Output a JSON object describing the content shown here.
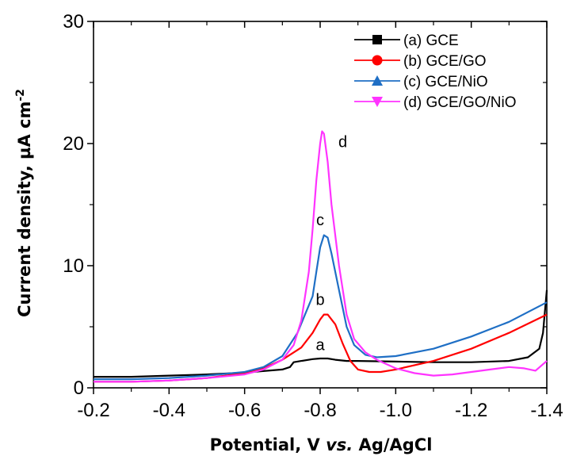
{
  "chart_data": {
    "type": "line",
    "xlabel_main": "Potential, V ",
    "xlabel_italic": "vs.",
    "xlabel_end": " Ag/AgCl",
    "ylabel_main": "Current density, µA cm",
    "ylabel_sup": "-2",
    "xlim": [
      -0.2,
      -1.4
    ],
    "ylim": [
      0,
      30
    ],
    "x_ticks": [
      -0.2,
      -0.4,
      -0.6,
      -0.8,
      -1.0,
      -1.2,
      -1.4
    ],
    "x_tick_labels": [
      "-0.2",
      "-0.4",
      "-0.6",
      "-0.8",
      "-1.0",
      "-1.2",
      "-1.4"
    ],
    "y_ticks": [
      0,
      10,
      20,
      30
    ],
    "y_tick_labels": [
      "0",
      "10",
      "20",
      "30"
    ],
    "legend_position": "top-right",
    "series": [
      {
        "name": "(a) GCE",
        "color": "#000000",
        "marker": "square",
        "peak_label": "a",
        "peak_label_pos": [
          -0.8,
          3.1
        ],
        "points": [
          [
            -0.2,
            0.9
          ],
          [
            -0.3,
            0.9
          ],
          [
            -0.4,
            1.0
          ],
          [
            -0.5,
            1.1
          ],
          [
            -0.6,
            1.25
          ],
          [
            -0.7,
            1.5
          ],
          [
            -0.72,
            1.7
          ],
          [
            -0.73,
            2.1
          ],
          [
            -0.75,
            2.2
          ],
          [
            -0.78,
            2.35
          ],
          [
            -0.8,
            2.4
          ],
          [
            -0.82,
            2.4
          ],
          [
            -0.84,
            2.3
          ],
          [
            -0.87,
            2.2
          ],
          [
            -0.9,
            2.2
          ],
          [
            -1.0,
            2.15
          ],
          [
            -1.1,
            2.1
          ],
          [
            -1.2,
            2.1
          ],
          [
            -1.3,
            2.2
          ],
          [
            -1.35,
            2.5
          ],
          [
            -1.38,
            3.2
          ],
          [
            -1.39,
            4.5
          ],
          [
            -1.4,
            8.0
          ]
        ]
      },
      {
        "name": "(b) GCE/GO",
        "color": "#ff0000",
        "marker": "circle",
        "peak_label": "b",
        "peak_label_pos": [
          -0.8,
          6.8
        ],
        "points": [
          [
            -0.2,
            0.5
          ],
          [
            -0.3,
            0.5
          ],
          [
            -0.4,
            0.6
          ],
          [
            -0.5,
            0.8
          ],
          [
            -0.6,
            1.2
          ],
          [
            -0.65,
            1.6
          ],
          [
            -0.7,
            2.3
          ],
          [
            -0.75,
            3.3
          ],
          [
            -0.78,
            4.5
          ],
          [
            -0.8,
            5.6
          ],
          [
            -0.81,
            6.0
          ],
          [
            -0.82,
            6.0
          ],
          [
            -0.84,
            5.2
          ],
          [
            -0.86,
            3.6
          ],
          [
            -0.88,
            2.2
          ],
          [
            -0.9,
            1.5
          ],
          [
            -0.93,
            1.3
          ],
          [
            -0.96,
            1.3
          ],
          [
            -1.0,
            1.5
          ],
          [
            -1.1,
            2.2
          ],
          [
            -1.2,
            3.2
          ],
          [
            -1.3,
            4.5
          ],
          [
            -1.4,
            6.0
          ]
        ]
      },
      {
        "name": "(c) GCE/NiO",
        "color": "#1f6fc5",
        "marker": "triangle-up",
        "peak_label": "c",
        "peak_label_pos": [
          -0.8,
          13.3
        ],
        "points": [
          [
            -0.2,
            0.7
          ],
          [
            -0.3,
            0.7
          ],
          [
            -0.4,
            0.8
          ],
          [
            -0.5,
            1.0
          ],
          [
            -0.6,
            1.3
          ],
          [
            -0.65,
            1.7
          ],
          [
            -0.7,
            2.6
          ],
          [
            -0.74,
            4.5
          ],
          [
            -0.76,
            6.0
          ],
          [
            -0.78,
            7.5
          ],
          [
            -0.79,
            9.5
          ],
          [
            -0.8,
            11.5
          ],
          [
            -0.81,
            12.5
          ],
          [
            -0.82,
            12.3
          ],
          [
            -0.83,
            11.0
          ],
          [
            -0.85,
            8.0
          ],
          [
            -0.87,
            5.0
          ],
          [
            -0.89,
            3.5
          ],
          [
            -0.92,
            2.7
          ],
          [
            -0.95,
            2.5
          ],
          [
            -1.0,
            2.6
          ],
          [
            -1.1,
            3.2
          ],
          [
            -1.2,
            4.2
          ],
          [
            -1.3,
            5.4
          ],
          [
            -1.4,
            7.0
          ]
        ]
      },
      {
        "name": "(d) GCE/GO/NiO",
        "color": "#ff33ff",
        "marker": "triangle-down",
        "peak_label": "d",
        "peak_label_pos": [
          -0.86,
          19.7
        ],
        "points": [
          [
            -0.2,
            0.5
          ],
          [
            -0.3,
            0.5
          ],
          [
            -0.4,
            0.6
          ],
          [
            -0.5,
            0.8
          ],
          [
            -0.6,
            1.1
          ],
          [
            -0.65,
            1.5
          ],
          [
            -0.7,
            2.3
          ],
          [
            -0.73,
            3.5
          ],
          [
            -0.75,
            5.5
          ],
          [
            -0.77,
            9.5
          ],
          [
            -0.78,
            13.0
          ],
          [
            -0.79,
            17.0
          ],
          [
            -0.8,
            20.0
          ],
          [
            -0.805,
            21.0
          ],
          [
            -0.81,
            20.8
          ],
          [
            -0.82,
            18.5
          ],
          [
            -0.83,
            15.0
          ],
          [
            -0.85,
            10.0
          ],
          [
            -0.87,
            6.0
          ],
          [
            -0.89,
            4.0
          ],
          [
            -0.92,
            2.9
          ],
          [
            -0.95,
            2.3
          ],
          [
            -1.0,
            1.6
          ],
          [
            -1.05,
            1.2
          ],
          [
            -1.1,
            1.0
          ],
          [
            -1.15,
            1.1
          ],
          [
            -1.2,
            1.3
          ],
          [
            -1.25,
            1.5
          ],
          [
            -1.3,
            1.7
          ],
          [
            -1.34,
            1.6
          ],
          [
            -1.37,
            1.4
          ],
          [
            -1.4,
            2.2
          ]
        ]
      }
    ]
  }
}
